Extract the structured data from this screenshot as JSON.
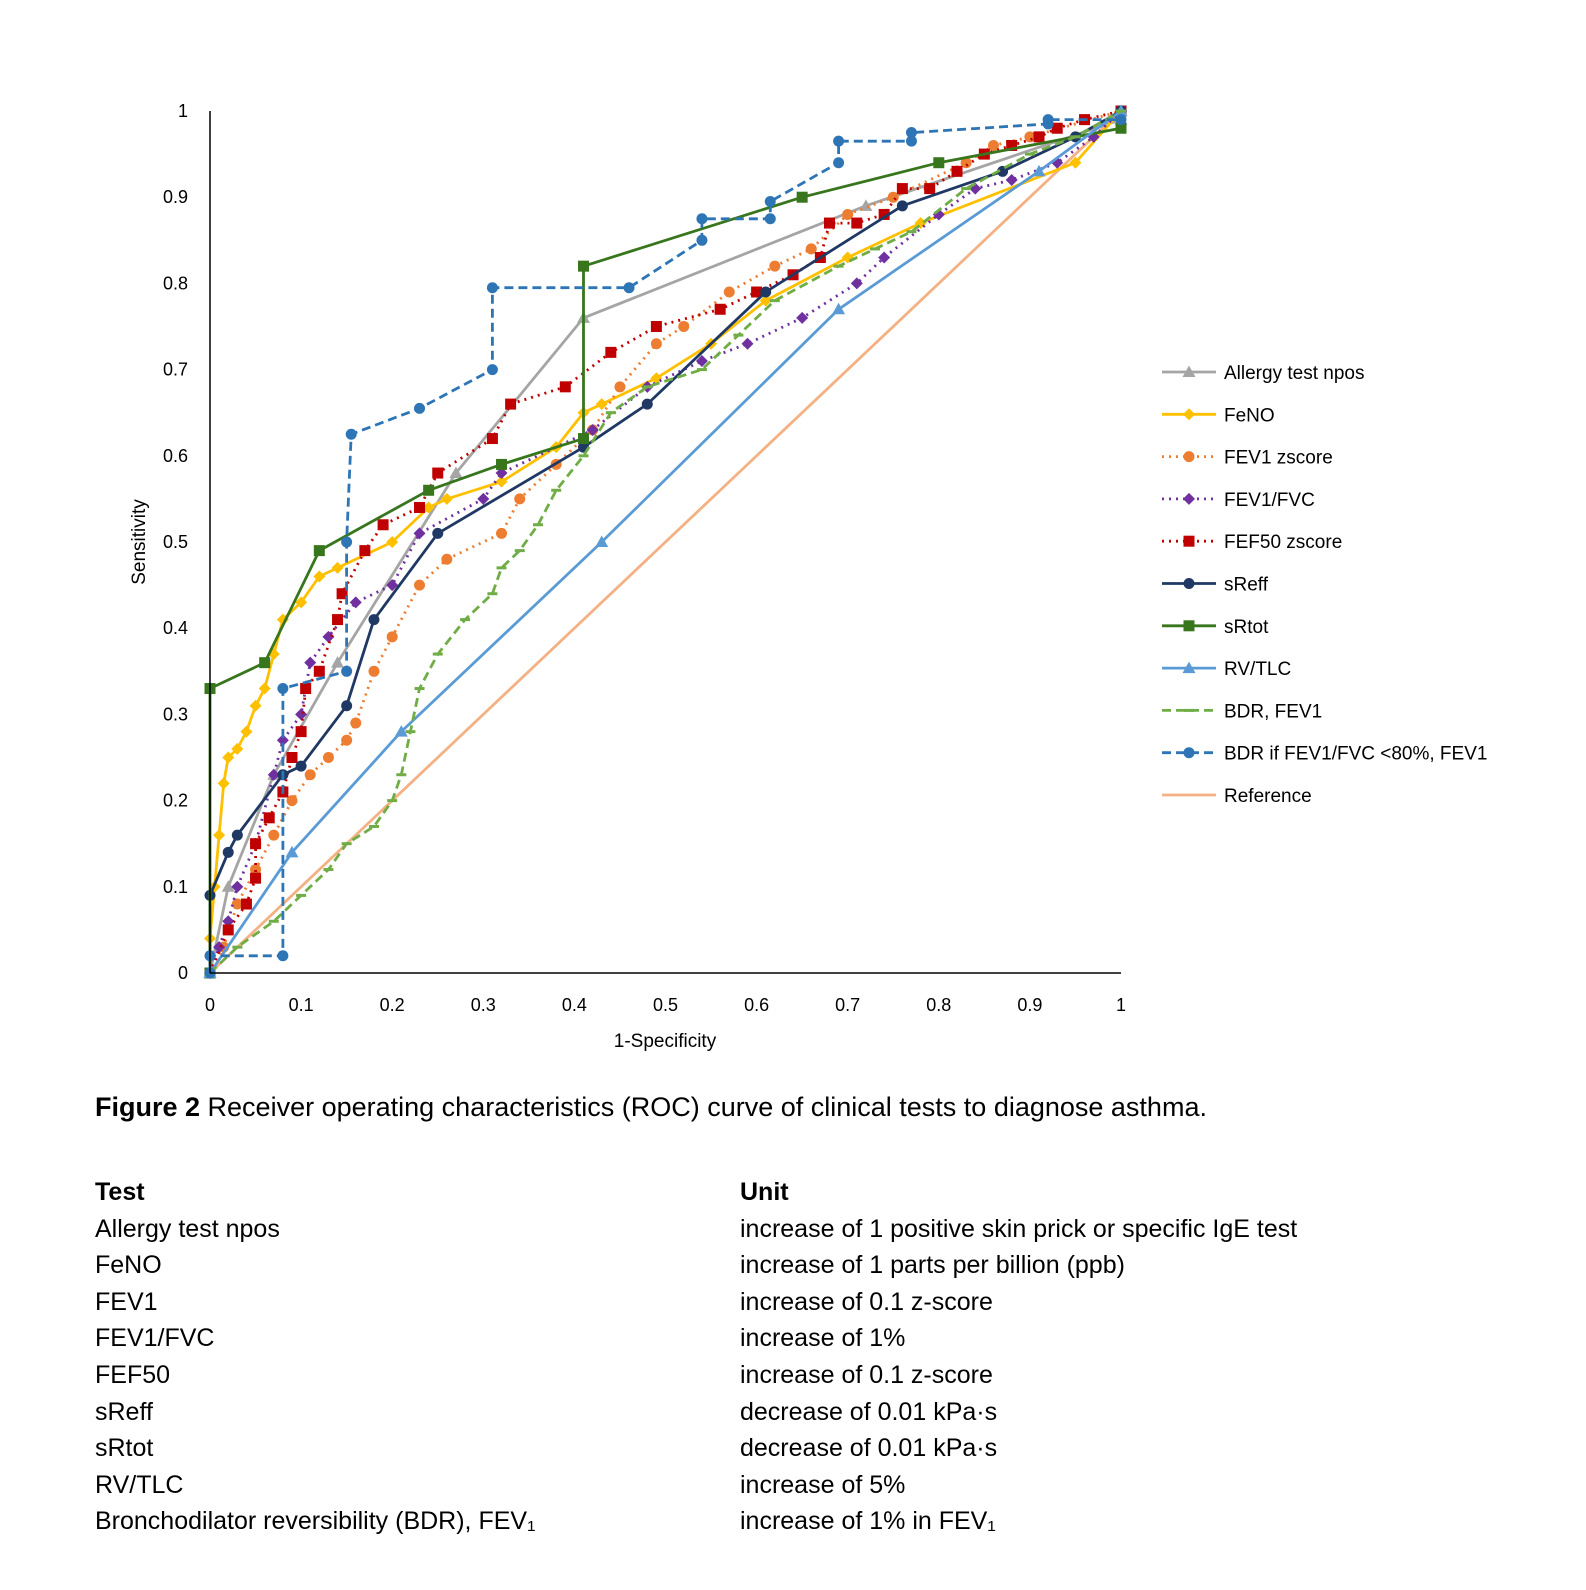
{
  "chart_data": {
    "type": "line",
    "title": "",
    "xlabel": "1-Specificity",
    "ylabel": "Sensitivity",
    "xlim": [
      0,
      1
    ],
    "ylim": [
      0,
      1
    ],
    "x_ticks": [
      "0",
      "0.1",
      "0.2",
      "0.3",
      "0.4",
      "0.5",
      "0.6",
      "0.7",
      "0.8",
      "0.9",
      "1"
    ],
    "y_ticks": [
      "0",
      "0.1",
      "0.2",
      "0.3",
      "0.4",
      "0.5",
      "0.6",
      "0.7",
      "0.8",
      "0.9",
      "1"
    ],
    "grid": false,
    "legend_position": "right",
    "series": [
      {
        "name": "Allergy test npos",
        "color": "#a5a5a5",
        "dash": "solid",
        "marker": "triangle",
        "points": [
          [
            0,
            0
          ],
          [
            0.02,
            0.1
          ],
          [
            0.07,
            0.23
          ],
          [
            0.14,
            0.36
          ],
          [
            0.27,
            0.58
          ],
          [
            0.41,
            0.76
          ],
          [
            0.72,
            0.89
          ],
          [
            1,
            0.99
          ]
        ]
      },
      {
        "name": "FeNO",
        "color": "#ffc000",
        "dash": "solid",
        "marker": "diamond",
        "points": [
          [
            0,
            0
          ],
          [
            0,
            0.04
          ],
          [
            0.005,
            0.1
          ],
          [
            0.01,
            0.16
          ],
          [
            0.015,
            0.22
          ],
          [
            0.02,
            0.25
          ],
          [
            0.03,
            0.26
          ],
          [
            0.04,
            0.28
          ],
          [
            0.05,
            0.31
          ],
          [
            0.06,
            0.33
          ],
          [
            0.07,
            0.37
          ],
          [
            0.08,
            0.41
          ],
          [
            0.1,
            0.43
          ],
          [
            0.12,
            0.46
          ],
          [
            0.14,
            0.47
          ],
          [
            0.2,
            0.5
          ],
          [
            0.24,
            0.54
          ],
          [
            0.26,
            0.55
          ],
          [
            0.32,
            0.57
          ],
          [
            0.38,
            0.61
          ],
          [
            0.41,
            0.65
          ],
          [
            0.43,
            0.66
          ],
          [
            0.49,
            0.69
          ],
          [
            0.55,
            0.73
          ],
          [
            0.61,
            0.78
          ],
          [
            0.7,
            0.83
          ],
          [
            0.78,
            0.87
          ],
          [
            0.95,
            0.94
          ],
          [
            1,
            1
          ]
        ]
      },
      {
        "name": "FEV1 zscore",
        "color": "#ed7d31",
        "dash": "dotted",
        "marker": "circle",
        "points": [
          [
            0,
            0
          ],
          [
            0.015,
            0.03
          ],
          [
            0.03,
            0.08
          ],
          [
            0.05,
            0.12
          ],
          [
            0.07,
            0.16
          ],
          [
            0.09,
            0.2
          ],
          [
            0.11,
            0.23
          ],
          [
            0.13,
            0.25
          ],
          [
            0.15,
            0.27
          ],
          [
            0.16,
            0.29
          ],
          [
            0.18,
            0.35
          ],
          [
            0.2,
            0.39
          ],
          [
            0.23,
            0.45
          ],
          [
            0.26,
            0.48
          ],
          [
            0.32,
            0.51
          ],
          [
            0.34,
            0.55
          ],
          [
            0.38,
            0.59
          ],
          [
            0.42,
            0.63
          ],
          [
            0.45,
            0.68
          ],
          [
            0.49,
            0.73
          ],
          [
            0.52,
            0.75
          ],
          [
            0.57,
            0.79
          ],
          [
            0.62,
            0.82
          ],
          [
            0.66,
            0.84
          ],
          [
            0.7,
            0.88
          ],
          [
            0.75,
            0.9
          ],
          [
            0.83,
            0.94
          ],
          [
            0.86,
            0.96
          ],
          [
            0.9,
            0.97
          ],
          [
            1,
            1
          ]
        ]
      },
      {
        "name": "FEV1/FVC",
        "color": "#7030a0",
        "dash": "dotted",
        "marker": "diamond",
        "points": [
          [
            0,
            0
          ],
          [
            0.01,
            0.03
          ],
          [
            0.02,
            0.06
          ],
          [
            0.03,
            0.1
          ],
          [
            0.05,
            0.15
          ],
          [
            0.07,
            0.23
          ],
          [
            0.08,
            0.27
          ],
          [
            0.1,
            0.3
          ],
          [
            0.11,
            0.36
          ],
          [
            0.13,
            0.39
          ],
          [
            0.16,
            0.43
          ],
          [
            0.2,
            0.45
          ],
          [
            0.23,
            0.51
          ],
          [
            0.3,
            0.55
          ],
          [
            0.32,
            0.58
          ],
          [
            0.42,
            0.63
          ],
          [
            0.48,
            0.68
          ],
          [
            0.54,
            0.71
          ],
          [
            0.59,
            0.73
          ],
          [
            0.65,
            0.76
          ],
          [
            0.71,
            0.8
          ],
          [
            0.74,
            0.83
          ],
          [
            0.8,
            0.88
          ],
          [
            0.84,
            0.91
          ],
          [
            0.88,
            0.92
          ],
          [
            0.93,
            0.94
          ],
          [
            0.97,
            0.97
          ],
          [
            1,
            1
          ]
        ]
      },
      {
        "name": "FEF50 zscore",
        "color": "#c00000",
        "dash": "dotted",
        "marker": "square",
        "points": [
          [
            0,
            0
          ],
          [
            0.02,
            0.05
          ],
          [
            0.04,
            0.08
          ],
          [
            0.05,
            0.11
          ],
          [
            0.05,
            0.15
          ],
          [
            0.065,
            0.18
          ],
          [
            0.08,
            0.21
          ],
          [
            0.09,
            0.25
          ],
          [
            0.1,
            0.28
          ],
          [
            0.105,
            0.33
          ],
          [
            0.12,
            0.35
          ],
          [
            0.14,
            0.41
          ],
          [
            0.145,
            0.44
          ],
          [
            0.17,
            0.49
          ],
          [
            0.19,
            0.52
          ],
          [
            0.23,
            0.54
          ],
          [
            0.25,
            0.58
          ],
          [
            0.31,
            0.62
          ],
          [
            0.33,
            0.66
          ],
          [
            0.39,
            0.68
          ],
          [
            0.44,
            0.72
          ],
          [
            0.49,
            0.75
          ],
          [
            0.56,
            0.77
          ],
          [
            0.6,
            0.79
          ],
          [
            0.64,
            0.81
          ],
          [
            0.67,
            0.83
          ],
          [
            0.68,
            0.87
          ],
          [
            0.71,
            0.87
          ],
          [
            0.74,
            0.88
          ],
          [
            0.76,
            0.91
          ],
          [
            0.79,
            0.91
          ],
          [
            0.82,
            0.93
          ],
          [
            0.85,
            0.95
          ],
          [
            0.88,
            0.96
          ],
          [
            0.91,
            0.97
          ],
          [
            0.93,
            0.98
          ],
          [
            0.96,
            0.99
          ],
          [
            1,
            1
          ]
        ]
      },
      {
        "name": "sReff",
        "color": "#203864",
        "dash": "solid",
        "marker": "circle",
        "points": [
          [
            0,
            0
          ],
          [
            0,
            0.09
          ],
          [
            0.02,
            0.14
          ],
          [
            0.03,
            0.16
          ],
          [
            0.08,
            0.23
          ],
          [
            0.1,
            0.24
          ],
          [
            0.15,
            0.31
          ],
          [
            0.18,
            0.41
          ],
          [
            0.25,
            0.51
          ],
          [
            0.41,
            0.61
          ],
          [
            0.48,
            0.66
          ],
          [
            0.61,
            0.79
          ],
          [
            0.76,
            0.89
          ],
          [
            0.87,
            0.93
          ],
          [
            0.95,
            0.97
          ],
          [
            1,
            1
          ]
        ]
      },
      {
        "name": "sRtot",
        "color": "#38761d",
        "dash": "solid",
        "marker": "square",
        "points": [
          [
            0,
            0
          ],
          [
            0,
            0.33
          ],
          [
            0.06,
            0.36
          ],
          [
            0.12,
            0.49
          ],
          [
            0.24,
            0.56
          ],
          [
            0.32,
            0.59
          ],
          [
            0.41,
            0.62
          ],
          [
            0.41,
            0.82
          ],
          [
            0.65,
            0.9
          ],
          [
            0.8,
            0.94
          ],
          [
            1,
            0.98
          ]
        ]
      },
      {
        "name": "RV/TLC",
        "color": "#5b9bd5",
        "dash": "solid",
        "marker": "triangle",
        "points": [
          [
            0,
            0
          ],
          [
            0.09,
            0.14
          ],
          [
            0.21,
            0.28
          ],
          [
            0.43,
            0.5
          ],
          [
            0.69,
            0.77
          ],
          [
            0.91,
            0.93
          ],
          [
            1,
            1
          ]
        ]
      },
      {
        "name": "BDR, FEV1",
        "color": "#70ad47",
        "dash": "dashed",
        "marker": "dash",
        "points": [
          [
            0,
            0
          ],
          [
            0.03,
            0.03
          ],
          [
            0.07,
            0.06
          ],
          [
            0.1,
            0.09
          ],
          [
            0.13,
            0.12
          ],
          [
            0.15,
            0.15
          ],
          [
            0.18,
            0.17
          ],
          [
            0.2,
            0.2
          ],
          [
            0.21,
            0.23
          ],
          [
            0.22,
            0.28
          ],
          [
            0.23,
            0.33
          ],
          [
            0.25,
            0.37
          ],
          [
            0.28,
            0.41
          ],
          [
            0.31,
            0.44
          ],
          [
            0.32,
            0.47
          ],
          [
            0.34,
            0.49
          ],
          [
            0.36,
            0.52
          ],
          [
            0.38,
            0.56
          ],
          [
            0.41,
            0.6
          ],
          [
            0.44,
            0.65
          ],
          [
            0.48,
            0.68
          ],
          [
            0.54,
            0.7
          ],
          [
            0.58,
            0.74
          ],
          [
            0.62,
            0.78
          ],
          [
            0.69,
            0.82
          ],
          [
            0.73,
            0.84
          ],
          [
            0.77,
            0.86
          ],
          [
            0.83,
            0.91
          ],
          [
            0.9,
            0.95
          ],
          [
            0.95,
            0.97
          ],
          [
            1,
            1
          ]
        ]
      },
      {
        "name": "BDR if FEV1/FVC <80%, FEV1",
        "color": "#2e75b6",
        "dash": "dashed",
        "marker": "circle",
        "points": [
          [
            0,
            0
          ],
          [
            0,
            0.02
          ],
          [
            0.08,
            0.02
          ],
          [
            0.08,
            0.33
          ],
          [
            0.15,
            0.35
          ],
          [
            0.15,
            0.5
          ],
          [
            0.155,
            0.625
          ],
          [
            0.23,
            0.655
          ],
          [
            0.31,
            0.7
          ],
          [
            0.31,
            0.795
          ],
          [
            0.46,
            0.795
          ],
          [
            0.54,
            0.85
          ],
          [
            0.54,
            0.875
          ],
          [
            0.615,
            0.875
          ],
          [
            0.615,
            0.895
          ],
          [
            0.69,
            0.94
          ],
          [
            0.69,
            0.965
          ],
          [
            0.77,
            0.965
          ],
          [
            0.77,
            0.975
          ],
          [
            0.92,
            0.985
          ],
          [
            0.92,
            0.99
          ],
          [
            1,
            0.99
          ]
        ]
      },
      {
        "name": "Reference",
        "color": "#f4b183",
        "dash": "solid",
        "marker": "none",
        "points": [
          [
            0,
            0
          ],
          [
            1,
            1
          ]
        ]
      }
    ]
  },
  "caption": {
    "label": "Figure 2",
    "text": "Receiver operating characteristics (ROC) curve of clinical tests to diagnose asthma."
  },
  "units_table": {
    "headers": [
      "Test",
      "Unit"
    ],
    "rows": [
      {
        "test": "Allergy test npos",
        "unit": "increase of 1 positive skin prick or specific IgE test"
      },
      {
        "test": "FeNO",
        "unit": "increase of 1 parts per billion (ppb)"
      },
      {
        "test": "FEV1",
        "unit": "increase of 0.1 z-score"
      },
      {
        "test": "FEV1/FVC",
        "unit": "increase of 1%"
      },
      {
        "test": "FEF50",
        "unit": "increase of 0.1 z-score"
      },
      {
        "test": "sReff",
        "unit": "decrease of 0.01 kPa·s"
      },
      {
        "test": "sRtot",
        "unit": "decrease of 0.01 kPa·s"
      },
      {
        "test": "RV/TLC",
        "unit": "increase of 5%"
      },
      {
        "test": "Bronchodilator reversibility (BDR), FEV₁",
        "unit": "increase of 1% in FEV₁"
      }
    ]
  }
}
